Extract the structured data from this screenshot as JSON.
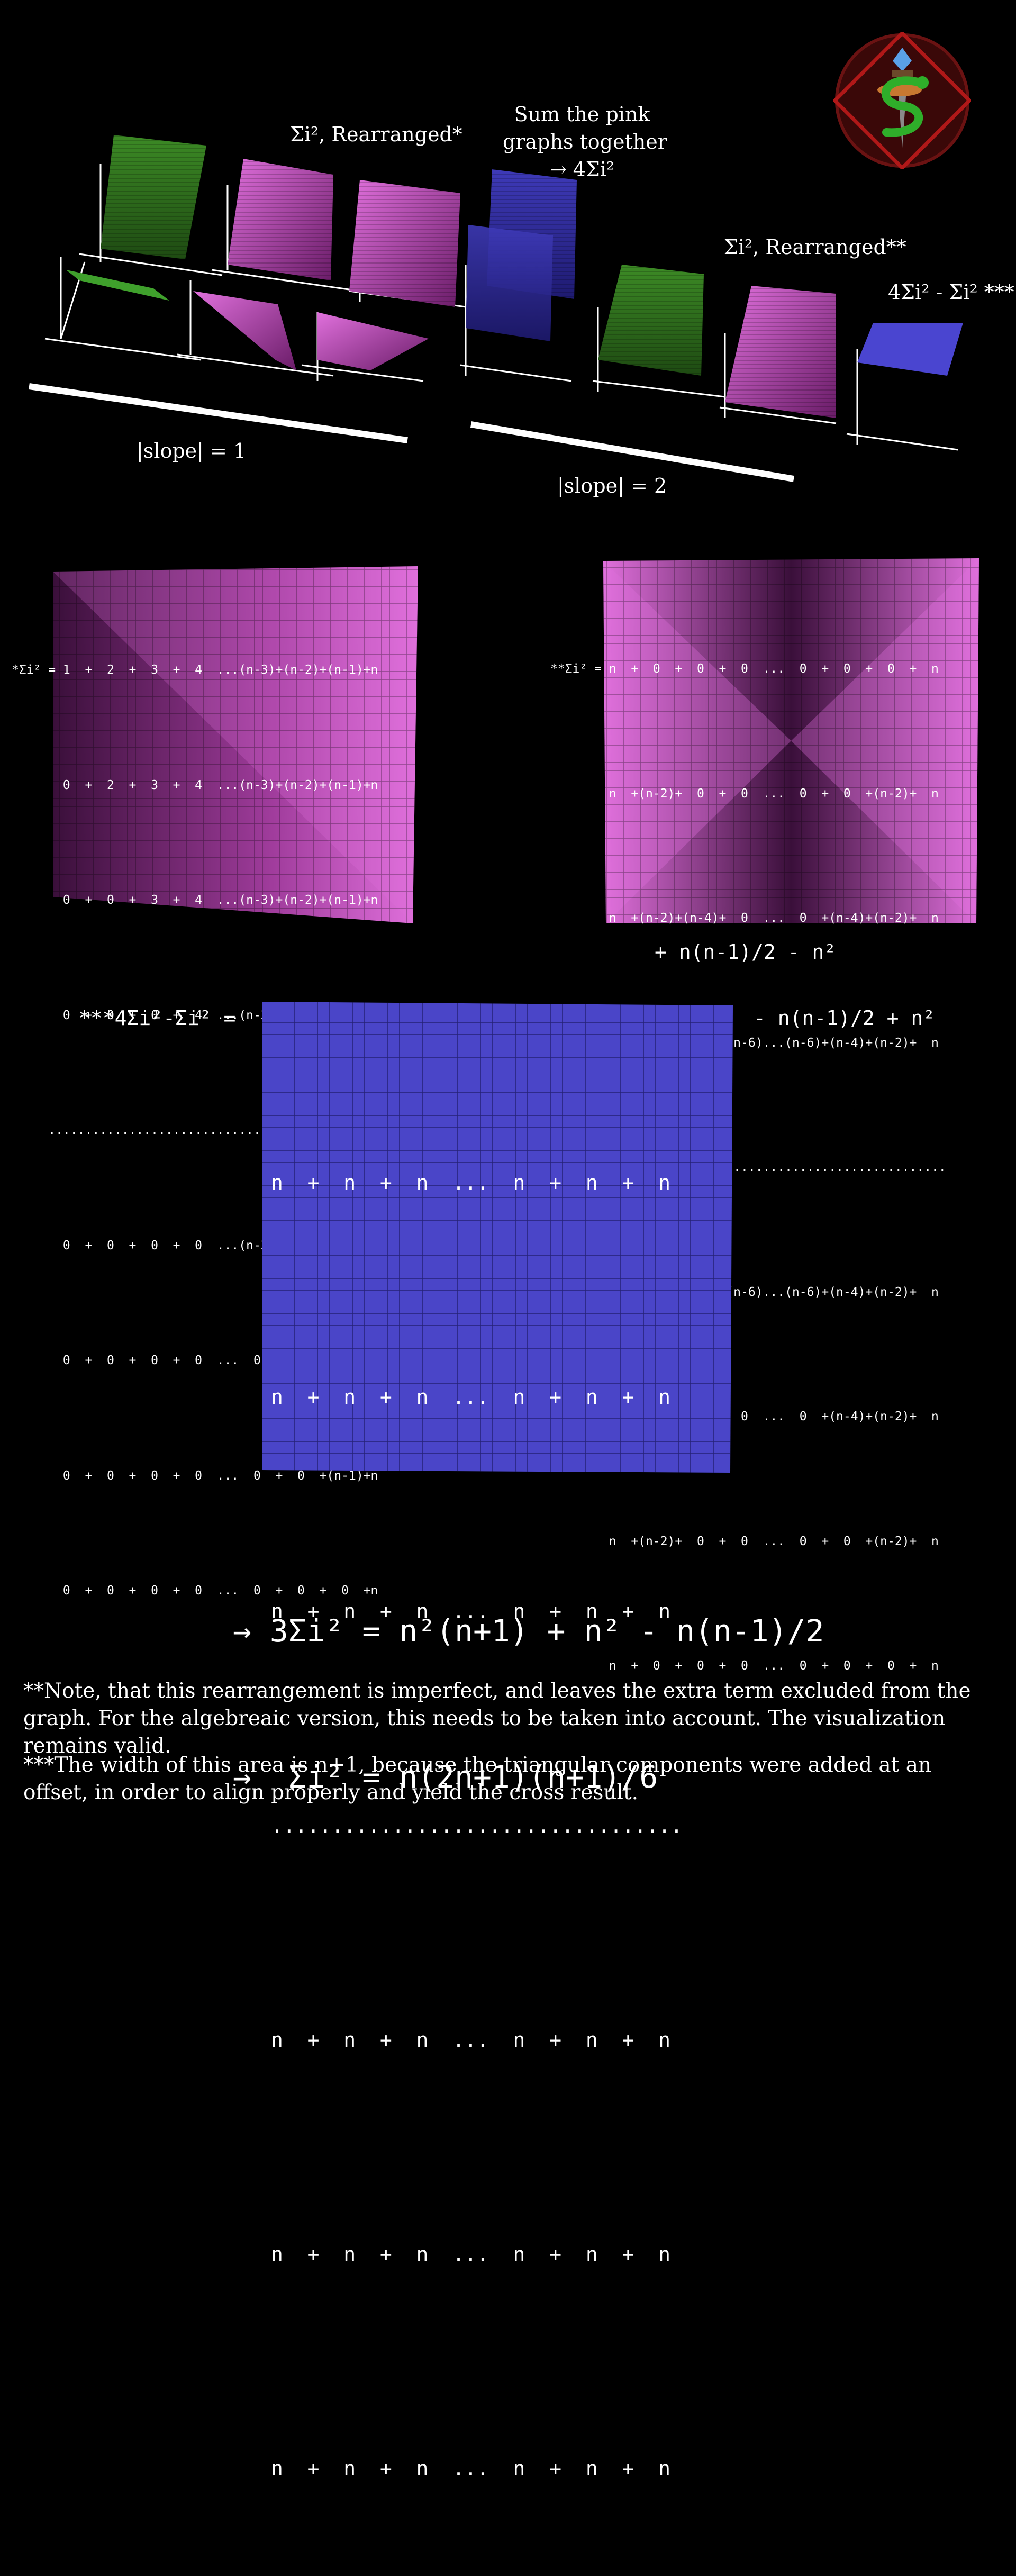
{
  "colors": {
    "background": "#000000",
    "green": "#4e9a2f",
    "pink": "#d85ad2",
    "blue": "#4a45c8",
    "text": "#ffffff"
  },
  "top": {
    "label_rearranged": "Σi², Rearranged*",
    "label_sum": [
      "Sum the pink",
      "graphs together",
      "→ 4Σi²"
    ],
    "label_rearranged2": "Σi², Rearranged**",
    "label_4sum": "4Σi² - Σi² ***",
    "slope1": "|slope| = 1",
    "slope2": "|slope| = 2"
  },
  "left_grid": {
    "rows": [
      "*Σi² = 1  +  2  +  3  +  4  ...(n-3)+(n-2)+(n-1)+n",
      "       0  +  2  +  3  +  4  ...(n-3)+(n-2)+(n-1)+n",
      "       0  +  0  +  3  +  4  ...(n-3)+(n-2)+(n-1)+n",
      "       0  +  0  +  0  +  4  ...(n-3)+(n-2)+(n-1)+n",
      "     .............................................",
      "       0  +  0  +  0  +  0  ...(n-3)+(n-2)+(n-1)+n",
      "       0  +  0  +  0  +  0  ...  0  +(n-2)+(n-1)+n",
      "       0  +  0  +  0  +  0  ...  0  +  0  +(n-1)+n",
      "       0  +  0  +  0  +  0  ...  0  +  0  +  0  +n"
    ]
  },
  "right_grid": {
    "rows": [
      "**Σi² = n  +  0  +  0  +  0  ...  0  +  0  +  0  +  n",
      "        n  +(n-2)+  0  +  0  ...  0  +  0  +(n-2)+  n",
      "        n  +(n-2)+(n-4)+  0  ...  0  +(n-4)+(n-2)+  n",
      "        n  +(n-2)+(n-4)+(n-6)...(n-6)+(n-4)+(n-2)+  n",
      "        ..............................................",
      "        n  +(n-2)+(n-4)+(n-6)...(n-6)+(n-4)+(n-2)+  n",
      "        n  +(n-2)+(n-4)+  0  ...  0  +(n-4)+(n-2)+  n",
      "        n  +(n-2)+  0  +  0  ...  0  +  0  +(n-2)+  n",
      "        n  +  0  +  0  +  0  ...  0  +  0  +  0  +  n"
    ],
    "caption": "+ n(n-1)/2 - n²"
  },
  "blue_grid": {
    "prefix": "***4Σi²-Σi² =",
    "suffix": "- n(n-1)/2 + n²",
    "rows": [
      "n  +  n  +  n  ...  n  +  n  +  n",
      "n  +  n  +  n  ...  n  +  n  +  n",
      "n  +  n  +  n  ...  n  +  n  +  n",
      "..................................",
      "n  +  n  +  n  ...  n  +  n  +  n",
      "n  +  n  +  n  ...  n  +  n  +  n",
      "n  +  n  +  n  ...  n  +  n  +  n"
    ]
  },
  "result": {
    "line1": "→ 3Σi² = n²(n+1) + n² - n(n-1)/2",
    "line2": "→  Σi² = n(2n+1)(n+1)/6"
  },
  "notes": {
    "note1": "**Note, that this rearrangement is imperfect, and leaves the extra term excluded from the graph. For the algebreaic version, this needs to be taken into account. The visualization remains valid.",
    "note2": "***The width of this area is n+1, because the triangular components were added at an offset, in order to align properly and yield the cross result."
  }
}
